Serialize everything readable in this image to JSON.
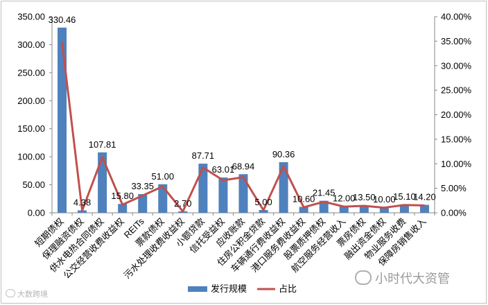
{
  "chart_data": {
    "type": "bar",
    "categories": [
      "短期债权",
      "保理融资债权",
      "供水电热合同债权",
      "公交经营收费收益权",
      "REITs",
      "票款债权",
      "污水处理收费收益权",
      "小额贷款",
      "信托受益权",
      "应收账款",
      "住房公积金贷款",
      "车辆通行费收益权",
      "港口服务费收益权",
      "股票质押债权",
      "航空服务经营收入",
      "票房债权",
      "融出资金债权",
      "物业服务收费",
      "保障房销售收入"
    ],
    "series": [
      {
        "name": "发行规模",
        "axis": "left",
        "type": "bar",
        "color": "#4f81bd",
        "values": [
          330.46,
          4.38,
          107.81,
          15.8,
          33.35,
          51.0,
          2.7,
          87.71,
          63.01,
          68.94,
          5.0,
          90.36,
          10.6,
          21.45,
          12.0,
          13.5,
          10.0,
          15.1,
          14.2
        ]
      },
      {
        "name": "占比",
        "axis": "right",
        "type": "line",
        "color": "#c0504d",
        "values": [
          34.8,
          0.46,
          11.35,
          1.66,
          3.51,
          5.37,
          0.28,
          9.23,
          6.63,
          7.26,
          0.53,
          9.51,
          1.12,
          2.26,
          1.26,
          1.42,
          1.05,
          1.59,
          1.5
        ]
      }
    ],
    "data_labels": [
      "330.46",
      "4.38",
      "107.81",
      "15.80",
      "33.35",
      "51.00",
      "2.70",
      "87.71",
      "63.01",
      "68.94",
      "5.00",
      "90.36",
      "10.60",
      "21.45",
      "12.00",
      "13.50",
      "10.00",
      "15.10",
      "14.20"
    ],
    "y_left": {
      "min": 0,
      "max": 350,
      "ticks": [
        "0.00",
        "50.00",
        "100.00",
        "150.00",
        "200.00",
        "250.00",
        "300.00",
        "350.00"
      ]
    },
    "y_right": {
      "min": 0,
      "max": 40,
      "ticks": [
        "0.00%",
        "5.00%",
        "10.00%",
        "15.00%",
        "20.00%",
        "25.00%",
        "30.00%",
        "35.00%",
        "40.00%"
      ]
    },
    "legend_position": "bottom",
    "grid": false
  },
  "watermarks": {
    "right": "小时代大资管",
    "left": "大数跨境"
  },
  "colors": {
    "bar": "#4f81bd",
    "line": "#c0504d",
    "axis": "#868686"
  }
}
